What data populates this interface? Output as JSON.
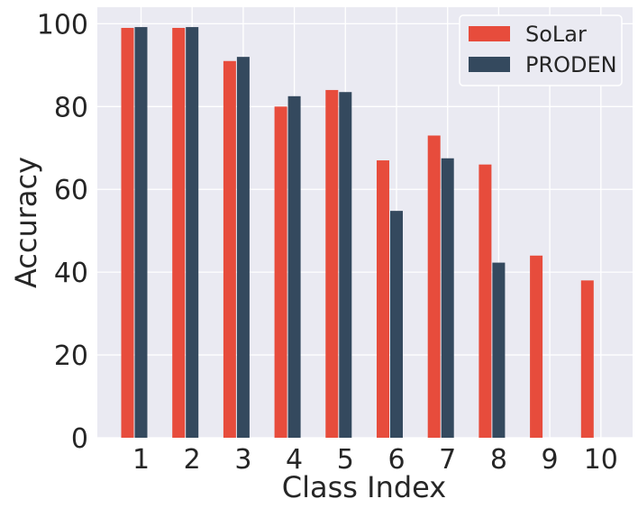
{
  "chart_data": {
    "type": "bar",
    "categories": [
      "1",
      "2",
      "3",
      "4",
      "5",
      "6",
      "7",
      "8",
      "9",
      "10"
    ],
    "series": [
      {
        "name": "SoLar",
        "color": "#e74c3c",
        "values": [
          99,
          99,
          91,
          80,
          84,
          67,
          73,
          66,
          44,
          38
        ]
      },
      {
        "name": "PRODEN",
        "color": "#34495e",
        "values": [
          99.2,
          99.2,
          92,
          82.5,
          83.5,
          54.8,
          67.5,
          42.3,
          0,
          0
        ]
      }
    ],
    "xlabel": "Class Index",
    "ylabel": "Accuracy",
    "ylim": [
      0,
      104
    ],
    "yticks": [
      0,
      20,
      40,
      60,
      80,
      100
    ],
    "grid": true,
    "legend_position": "top-right",
    "background": "#eaeaf2"
  }
}
